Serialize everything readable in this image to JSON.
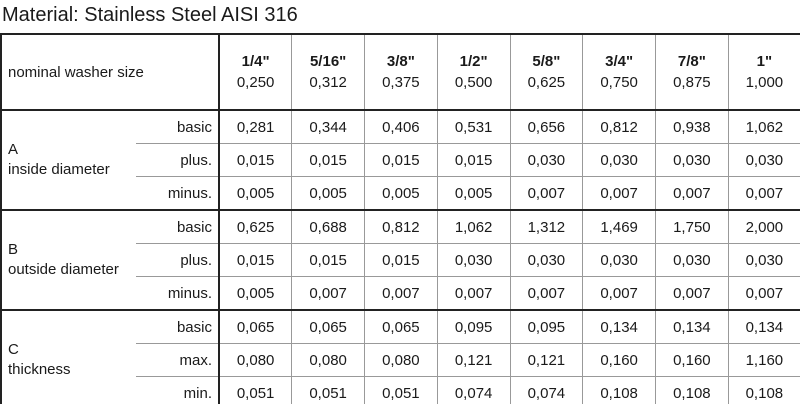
{
  "title": "Material: Stainless Steel AISI 316",
  "table": {
    "header_label": "nominal washer size",
    "columns": [
      {
        "size": "1/4\"",
        "decimal": "0,250"
      },
      {
        "size": "5/16\"",
        "decimal": "0,312"
      },
      {
        "size": "3/8\"",
        "decimal": "0,375"
      },
      {
        "size": "1/2\"",
        "decimal": "0,500"
      },
      {
        "size": "5/8\"",
        "decimal": "0,625"
      },
      {
        "size": "3/4\"",
        "decimal": "0,750"
      },
      {
        "size": "7/8\"",
        "decimal": "0,875"
      },
      {
        "size": "1\"",
        "decimal": "1,000"
      }
    ],
    "groups": [
      {
        "letter": "A",
        "name": "inside diameter",
        "rows": [
          {
            "label": "basic",
            "values": [
              "0,281",
              "0,344",
              "0,406",
              "0,531",
              "0,656",
              "0,812",
              "0,938",
              "1,062"
            ]
          },
          {
            "label": "plus.",
            "values": [
              "0,015",
              "0,015",
              "0,015",
              "0,015",
              "0,030",
              "0,030",
              "0,030",
              "0,030"
            ]
          },
          {
            "label": "minus.",
            "values": [
              "0,005",
              "0,005",
              "0,005",
              "0,005",
              "0,007",
              "0,007",
              "0,007",
              "0,007"
            ]
          }
        ]
      },
      {
        "letter": "B",
        "name": "outside diameter",
        "rows": [
          {
            "label": "basic",
            "values": [
              "0,625",
              "0,688",
              "0,812",
              "1,062",
              "1,312",
              "1,469",
              "1,750",
              "2,000"
            ]
          },
          {
            "label": "plus.",
            "values": [
              "0,015",
              "0,015",
              "0,015",
              "0,030",
              "0,030",
              "0,030",
              "0,030",
              "0,030"
            ]
          },
          {
            "label": "minus.",
            "values": [
              "0,005",
              "0,007",
              "0,007",
              "0,007",
              "0,007",
              "0,007",
              "0,007",
              "0,007"
            ]
          }
        ]
      },
      {
        "letter": "C",
        "name": "thickness",
        "rows": [
          {
            "label": "basic",
            "values": [
              "0,065",
              "0,065",
              "0,065",
              "0,095",
              "0,095",
              "0,134",
              "0,134",
              "0,134"
            ]
          },
          {
            "label": "max.",
            "values": [
              "0,080",
              "0,080",
              "0,080",
              "0,121",
              "0,121",
              "0,160",
              "0,160",
              "1,160"
            ]
          },
          {
            "label": "min.",
            "values": [
              "0,051",
              "0,051",
              "0,051",
              "0,074",
              "0,074",
              "0,108",
              "0,108",
              "0,108"
            ]
          }
        ]
      }
    ]
  }
}
